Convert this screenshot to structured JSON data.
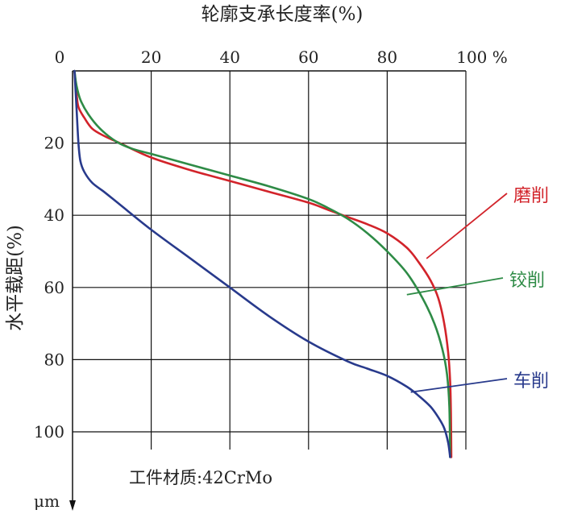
{
  "chart_data": {
    "type": "line",
    "title": "轮廓支承长度率(%)",
    "xlabel": "轮廓支承长度率(%)",
    "ylabel": "水平载距(%)",
    "x_ticks": [
      "0",
      "20",
      "40",
      "60",
      "80",
      "100 %"
    ],
    "y_ticks": [
      "20",
      "40",
      "60",
      "80",
      "100"
    ],
    "y_unit": "μm",
    "xlim": [
      0,
      100
    ],
    "ylim": [
      0,
      110
    ],
    "y_inverted": true,
    "x_axis_position": "top",
    "grid": true,
    "annotation": "工件材质:42CrMo",
    "series": [
      {
        "name": "磨削",
        "color": "#d2232a",
        "points": [
          [
            0.5,
            0
          ],
          [
            1,
            6
          ],
          [
            1.5,
            10
          ],
          [
            3,
            13
          ],
          [
            5,
            16
          ],
          [
            8,
            18
          ],
          [
            12,
            20
          ],
          [
            20,
            24
          ],
          [
            30,
            27.5
          ],
          [
            40,
            30.5
          ],
          [
            50,
            33.5
          ],
          [
            60,
            36.5
          ],
          [
            65,
            38.5
          ],
          [
            70,
            40.5
          ],
          [
            75,
            42.5
          ],
          [
            80,
            45
          ],
          [
            85,
            49
          ],
          [
            88,
            53
          ],
          [
            91,
            58
          ],
          [
            93,
            63
          ],
          [
            94.5,
            70
          ],
          [
            95.5,
            78
          ],
          [
            96,
            86
          ],
          [
            96.2,
            95
          ],
          [
            96.3,
            107
          ]
        ],
        "label_anchor": [
          90,
          52
        ]
      },
      {
        "name": "铰削",
        "color": "#2e8b46",
        "points": [
          [
            0.5,
            0
          ],
          [
            1,
            4
          ],
          [
            2,
            8
          ],
          [
            4,
            12
          ],
          [
            7,
            16
          ],
          [
            11,
            19.5
          ],
          [
            15,
            21.5
          ],
          [
            20,
            23
          ],
          [
            30,
            26
          ],
          [
            40,
            29
          ],
          [
            50,
            32
          ],
          [
            60,
            35.5
          ],
          [
            65,
            38
          ],
          [
            70,
            41
          ],
          [
            75,
            45
          ],
          [
            80,
            50
          ],
          [
            85,
            56
          ],
          [
            89,
            63
          ],
          [
            92,
            70
          ],
          [
            94,
            77
          ],
          [
            95.2,
            84
          ],
          [
            95.8,
            93
          ],
          [
            96,
            107
          ]
        ],
        "label_anchor": [
          85,
          62
        ]
      },
      {
        "name": "车削",
        "color": "#283a8c",
        "points": [
          [
            0.5,
            0
          ],
          [
            1,
            10
          ],
          [
            1.5,
            20
          ],
          [
            2,
            25
          ],
          [
            3,
            28
          ],
          [
            5,
            31
          ],
          [
            8,
            33.5
          ],
          [
            12,
            37
          ],
          [
            20,
            44
          ],
          [
            30,
            52
          ],
          [
            40,
            60
          ],
          [
            50,
            68
          ],
          [
            60,
            75
          ],
          [
            70,
            80.5
          ],
          [
            75,
            82.5
          ],
          [
            80,
            84.5
          ],
          [
            85,
            87.5
          ],
          [
            88,
            90
          ],
          [
            91,
            93
          ],
          [
            93,
            96
          ],
          [
            94.5,
            99
          ],
          [
            95.5,
            103
          ],
          [
            96,
            107
          ]
        ],
        "label_anchor": [
          86,
          89
        ]
      }
    ]
  }
}
